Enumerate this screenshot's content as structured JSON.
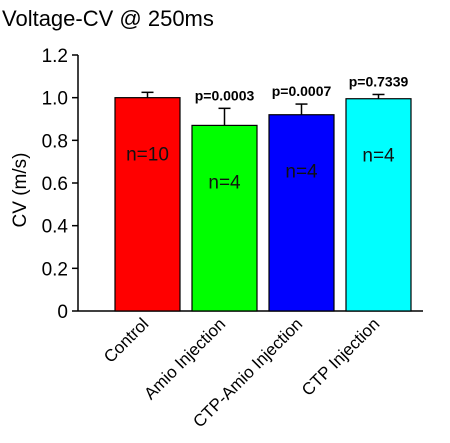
{
  "chart_data": {
    "type": "bar",
    "title": "Voltage-CV @ 250ms",
    "ylabel": "CV (m/s)",
    "xlabel": "",
    "ylim": [
      0,
      1.2
    ],
    "yticks": [
      "0",
      "0.2",
      "0.4",
      "0.6",
      "0.8",
      "1.0",
      "1.2"
    ],
    "categories": [
      "Control",
      "Amio Injection",
      "CTP-Amio Injection",
      "CTP Injection"
    ],
    "values": [
      1.0,
      0.87,
      0.92,
      0.995
    ],
    "errors": [
      0.025,
      0.08,
      0.05,
      0.02
    ],
    "colors": [
      "#ff0000",
      "#00ff00",
      "#0000ff",
      "#00ffff"
    ],
    "n_labels": [
      "n=10",
      "n=4",
      "n=4",
      "n=4"
    ],
    "p_labels": [
      "",
      "p=0.0003",
      "p=0.0007",
      "p=0.7339"
    ],
    "grid": false
  }
}
